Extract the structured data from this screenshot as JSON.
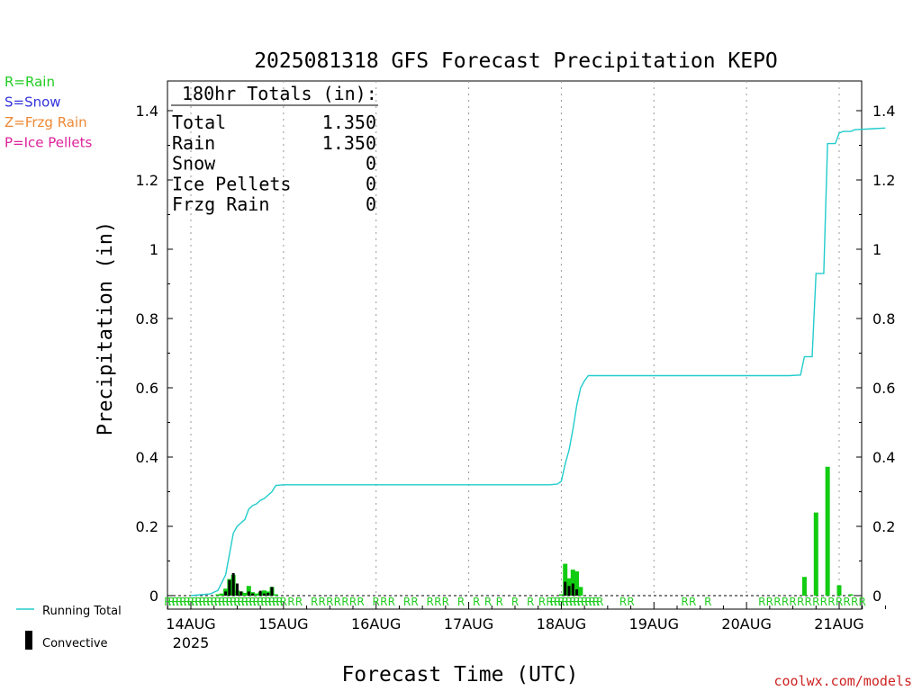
{
  "chart_data": {
    "type": "bar+line",
    "title": "2025081318 GFS Forecast Precipitation KEPO",
    "ylabel": "Precipitation (in)",
    "xlabel": "Forecast Time (UTC)",
    "ylim": [
      0,
      1.48
    ],
    "yticks": [
      0,
      0.2,
      0.4,
      0.6,
      0.8,
      1,
      1.2,
      1.4
    ],
    "ytick_labels": [
      "0",
      "0.2",
      "0.4",
      "0.6",
      "0.8",
      "1",
      "1.2",
      "1.4"
    ],
    "xlim_hours": [
      -6,
      183
    ],
    "x_start": "2025-08-13 18:00 UTC",
    "x_ticks": [
      {
        "label": "14AUG",
        "sub": "2025",
        "hour": 0
      },
      {
        "label": "15AUG",
        "sub": "",
        "hour": 24
      },
      {
        "label": "16AUG",
        "sub": "",
        "hour": 48
      },
      {
        "label": "17AUG",
        "sub": "",
        "hour": 72
      },
      {
        "label": "18AUG",
        "sub": "",
        "hour": 96
      },
      {
        "label": "19AUG",
        "sub": "",
        "hour": 120
      },
      {
        "label": "20AUG",
        "sub": "",
        "hour": 144
      },
      {
        "label": "21AUG",
        "sub": "",
        "hour": 168
      }
    ],
    "legend_types": [
      {
        "text": "R=Rain",
        "color": "#22cc22"
      },
      {
        "text": "S=Snow",
        "color": "#3333dd"
      },
      {
        "text": "Z=Frzg Rain",
        "color": "#ee8833"
      },
      {
        "text": "P=Ice Pellets",
        "color": "#dd2299"
      }
    ],
    "legend_series": [
      {
        "text": "Running Total",
        "color": "#22cccc"
      },
      {
        "text": "Convective",
        "color": "#000000"
      }
    ],
    "totals": {
      "header": "180hr Totals (in):",
      "rows": [
        {
          "label": "Total",
          "value": "1.350"
        },
        {
          "label": "Rain",
          "value": "1.350"
        },
        {
          "label": "Snow",
          "value": "0"
        },
        {
          "label": "Ice Pellets",
          "value": "0"
        },
        {
          "label": "Frzg Rain",
          "value": "0"
        }
      ]
    },
    "running_total": [
      [
        0,
        0
      ],
      [
        5,
        0.005
      ],
      [
        7,
        0.015
      ],
      [
        9,
        0.06
      ],
      [
        10,
        0.12
      ],
      [
        11,
        0.18
      ],
      [
        12,
        0.2
      ],
      [
        13,
        0.21
      ],
      [
        14,
        0.22
      ],
      [
        15,
        0.25
      ],
      [
        16,
        0.26
      ],
      [
        17,
        0.265
      ],
      [
        18,
        0.275
      ],
      [
        19,
        0.28
      ],
      [
        20,
        0.29
      ],
      [
        21,
        0.3
      ],
      [
        22,
        0.318
      ],
      [
        24,
        0.32
      ],
      [
        90,
        0.32
      ],
      [
        93,
        0.32
      ],
      [
        95,
        0.322
      ],
      [
        96,
        0.33
      ],
      [
        97,
        0.38
      ],
      [
        98,
        0.42
      ],
      [
        99,
        0.48
      ],
      [
        100,
        0.55
      ],
      [
        101,
        0.6
      ],
      [
        102,
        0.62
      ],
      [
        103,
        0.635
      ],
      [
        155,
        0.635
      ],
      [
        158,
        0.637
      ],
      [
        159,
        0.69
      ],
      [
        161,
        0.69
      ],
      [
        162,
        0.93
      ],
      [
        164,
        0.93
      ],
      [
        165,
        1.305
      ],
      [
        167,
        1.305
      ],
      [
        168,
        1.335
      ],
      [
        169,
        1.34
      ],
      [
        171,
        1.34
      ],
      [
        172,
        1.345
      ],
      [
        177,
        1.348
      ],
      [
        180,
        1.35
      ]
    ],
    "rain_bars": [
      [
        7,
        0.004
      ],
      [
        8,
        0.006
      ],
      [
        9,
        0.02
      ],
      [
        10,
        0.048
      ],
      [
        11,
        0.06
      ],
      [
        12,
        0.015
      ],
      [
        13,
        0.012
      ],
      [
        14,
        0.008
      ],
      [
        15,
        0.028
      ],
      [
        16,
        0.01
      ],
      [
        17,
        0.006
      ],
      [
        18,
        0.01
      ],
      [
        19,
        0.015
      ],
      [
        20,
        0.012
      ],
      [
        21,
        0.025
      ],
      [
        22,
        0.004
      ],
      [
        96,
        0.004
      ],
      [
        97,
        0.092
      ],
      [
        98,
        0.05
      ],
      [
        99,
        0.075
      ],
      [
        100,
        0.07
      ],
      [
        101,
        0.025
      ],
      [
        159,
        0.054
      ],
      [
        162,
        0.24
      ],
      [
        165,
        0.372
      ],
      [
        168,
        0.03
      ],
      [
        171,
        0.004
      ]
    ],
    "convective_bars": [
      [
        9,
        0.012
      ],
      [
        10,
        0.045
      ],
      [
        11,
        0.065
      ],
      [
        12,
        0.035
      ],
      [
        13,
        0.012
      ],
      [
        15,
        0.012
      ],
      [
        16,
        0.006
      ],
      [
        18,
        0.014
      ],
      [
        19,
        0.006
      ],
      [
        20,
        0.008
      ],
      [
        21,
        0.025
      ],
      [
        97,
        0.04
      ],
      [
        98,
        0.028
      ],
      [
        99,
        0.035
      ],
      [
        100,
        0.018
      ]
    ],
    "ptype_markers": {
      "text": "R",
      "color": "#22cc22",
      "hours": [
        -6,
        -5,
        -4,
        -3,
        -2,
        -1,
        0,
        1,
        2,
        3,
        4,
        5,
        6,
        7,
        8,
        9,
        10,
        11,
        12,
        13,
        14,
        15,
        16,
        17,
        18,
        19,
        20,
        21,
        22,
        23,
        24,
        26,
        28,
        32,
        34,
        36,
        38,
        40,
        42,
        44,
        48,
        50,
        52,
        56,
        58,
        62,
        64,
        66,
        70,
        74,
        77,
        80,
        84,
        88,
        91,
        93,
        94,
        95,
        96,
        97,
        98,
        99,
        100,
        101,
        102,
        103,
        104,
        105,
        106,
        112,
        114,
        128,
        130,
        134,
        148,
        150,
        152,
        154,
        156,
        158,
        160,
        162,
        164,
        166,
        168,
        170,
        172,
        174
      ]
    },
    "footer_credit": "coolwx.com/models"
  }
}
